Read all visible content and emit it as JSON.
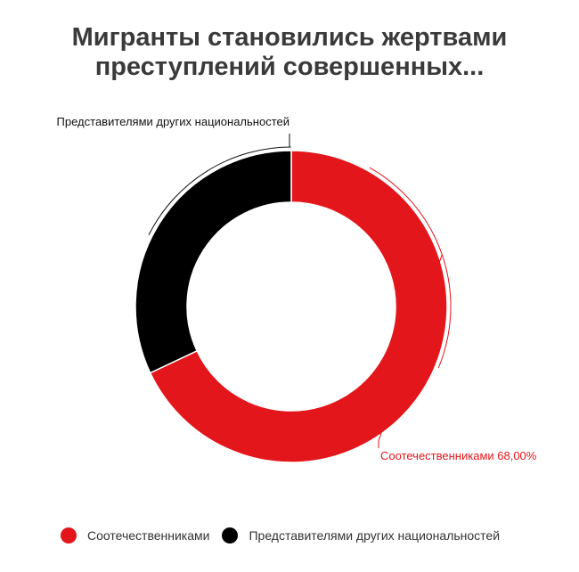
{
  "title_lines": [
    "Мигранты становились жертвами",
    "преступлений совершенных..."
  ],
  "chart_data": {
    "type": "pie",
    "variant": "donut",
    "categories": [
      "Соотечественниками",
      "Представителями других национальностей"
    ],
    "values": [
      68.0,
      32.0
    ],
    "colors": [
      "#e3161b",
      "#000000"
    ],
    "data_labels": [
      "Соотечественниками 68,00%",
      "Представителями других национальностей"
    ],
    "label_colors": [
      "#e3161b",
      "#111111"
    ],
    "legend_position": "bottom-left"
  },
  "legend": {
    "items": [
      {
        "label": "Соотечественниками",
        "color": "#e3161b"
      },
      {
        "label": "Представителями других национальностей",
        "color": "#000000"
      }
    ]
  }
}
